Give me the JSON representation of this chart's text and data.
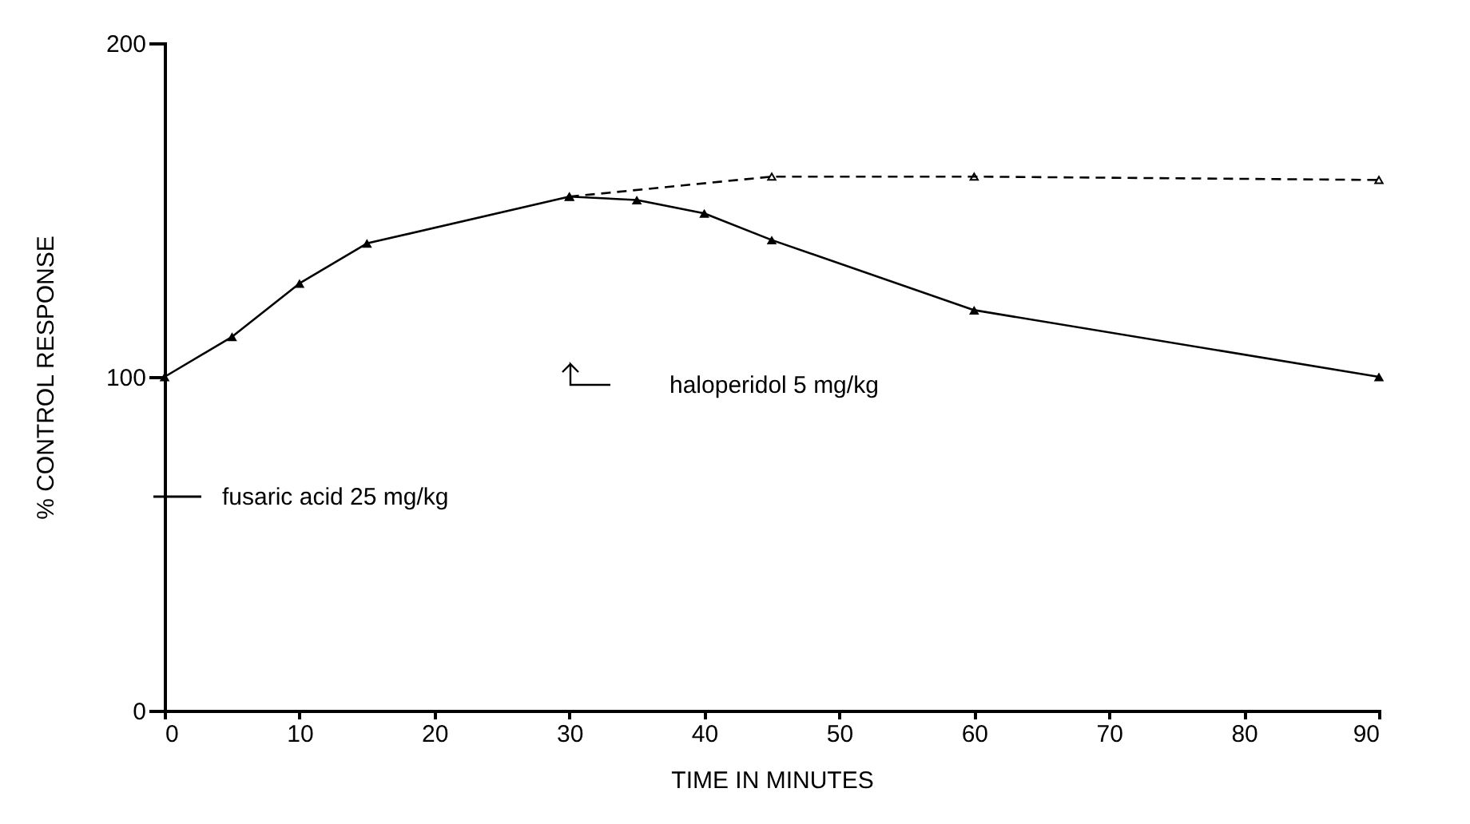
{
  "chart_data": {
    "type": "line",
    "xlabel": "TIME IN MINUTES",
    "ylabel": "% CONTROL RESPONSE",
    "xlim": [
      0,
      90
    ],
    "xticks": [
      0,
      10,
      20,
      30,
      40,
      50,
      60,
      70,
      80,
      90
    ],
    "ylim": [
      0,
      200
    ],
    "yticks": [
      0,
      100,
      200
    ],
    "grid": false,
    "legend": "left",
    "marker": "triangle",
    "series": [
      {
        "name": "fusaric acid 25 mg/kg",
        "color": "#000000",
        "line_style": "solid",
        "x": [
          0,
          5,
          10,
          15,
          30,
          35,
          40,
          45,
          60,
          90
        ],
        "values": [
          100,
          112,
          128,
          140,
          154,
          153,
          149,
          141,
          120,
          100
        ]
      },
      {
        "color": "#000000",
        "line_style": "dashed",
        "x": [
          30,
          45,
          60,
          90
        ],
        "values": [
          154,
          160,
          160,
          159
        ]
      }
    ],
    "annotations": [
      "haloperidol 5 mg/kg"
    ]
  }
}
